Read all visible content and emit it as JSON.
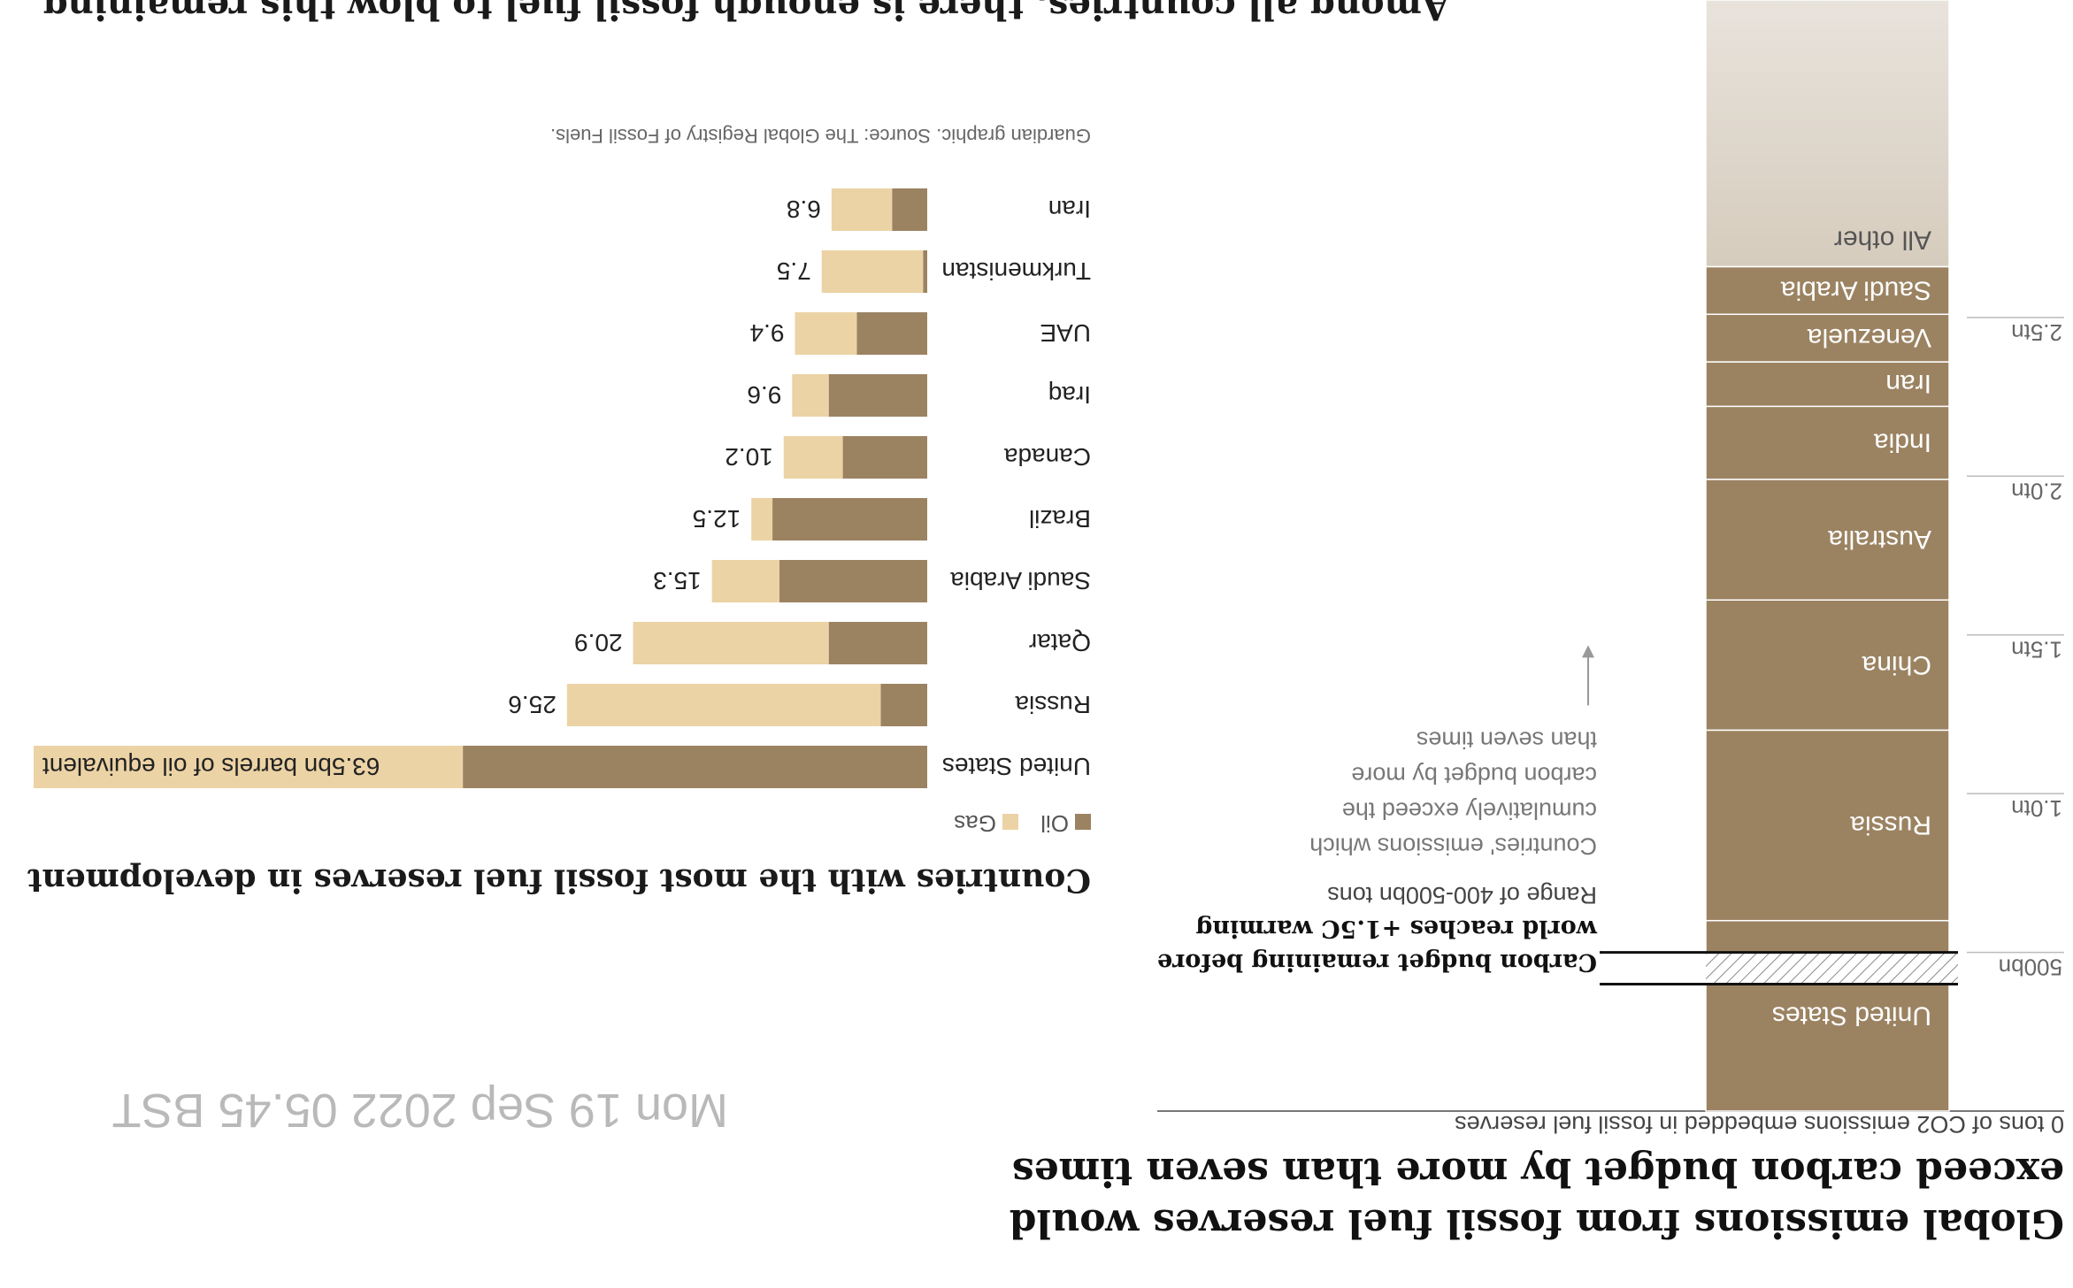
{
  "top_text": "Among all countries, there is enough fossil fuel to blow this remaining",
  "main_title": "Global emissions from fossil fuel reserves would exceed carbon budget by more than seven times",
  "timestamp": "Mon 19 Sep 2022 05.45 BST",
  "source": "Guardian graphic. Source: The Global Registry of Fossil Fuels.",
  "colors": {
    "oil": "#9b8362",
    "gas": "#ecd3a5",
    "stack": "#9b8362",
    "stack_faded": "#e8e3dc",
    "axis": "#555555"
  },
  "chart_data": [
    {
      "type": "bar",
      "orientation": "vertical-stacked",
      "ylabel": "0 tons of CO2 emissions embedded in fossil fuel reserves",
      "ticks": [
        "500bn",
        "1.0tn",
        "1.5tn",
        "2.0tn",
        "2.5tn"
      ],
      "tick_values": [
        0.5,
        1.0,
        1.5,
        2.0,
        2.5
      ],
      "ylim": [
        0,
        3.5
      ],
      "segments": [
        {
          "name": "United States",
          "from": 0.0,
          "to": 0.6
        },
        {
          "name": "Russia",
          "from": 0.6,
          "to": 1.2
        },
        {
          "name": "China",
          "from": 1.2,
          "to": 1.61
        },
        {
          "name": "Australia",
          "from": 1.61,
          "to": 1.99
        },
        {
          "name": "India",
          "from": 1.99,
          "to": 2.22
        },
        {
          "name": "Iran",
          "from": 2.22,
          "to": 2.36
        },
        {
          "name": "Venezuela",
          "from": 2.36,
          "to": 2.51
        },
        {
          "name": "Saudi Arabia",
          "from": 2.51,
          "to": 2.66
        },
        {
          "name": "All other",
          "from": 2.66,
          "to": 3.5
        }
      ],
      "budget_range": {
        "from": 0.4,
        "to": 0.5,
        "label": "Range of 400-500bn tons"
      },
      "annotations": {
        "budget": [
          "Carbon budget remaining before",
          "world reaches +1.5C warming",
          "Range of 400-500bn tons"
        ],
        "multiple": [
          "Countries' emissions which",
          "cumulatively exceed the",
          "carbon budget by more",
          "than seven times"
        ]
      }
    },
    {
      "type": "bar",
      "orientation": "horizontal-stacked",
      "title": "Countries with the most fossil fuel reserves in development",
      "legend": [
        "Oil",
        "Gas"
      ],
      "unit_label": "63.5bn barrels of oil equivalent",
      "categories": [
        "United States",
        "Russia",
        "Qatar",
        "Saudi Arabia",
        "Brazil",
        "Canada",
        "Iraq",
        "UAE",
        "Turkmenistan",
        "Iran"
      ],
      "totals": [
        63.5,
        25.6,
        20.9,
        15.3,
        12.5,
        10.2,
        9.6,
        9.4,
        7.5,
        6.8
      ],
      "total_labels": [
        "63.5bn barrels of oil equivalent",
        "25.6",
        "20.9",
        "15.3",
        "12.5",
        "10.2",
        "9.6",
        "9.4",
        "7.5",
        "6.8"
      ],
      "series": [
        {
          "name": "Oil",
          "values": [
            33.0,
            3.3,
            7.0,
            10.5,
            11.0,
            6.0,
            7.0,
            5.0,
            0.3,
            2.5
          ]
        },
        {
          "name": "Gas",
          "values": [
            30.5,
            22.3,
            13.9,
            4.8,
            1.5,
            4.2,
            2.6,
            4.4,
            7.2,
            4.3
          ]
        }
      ]
    }
  ]
}
